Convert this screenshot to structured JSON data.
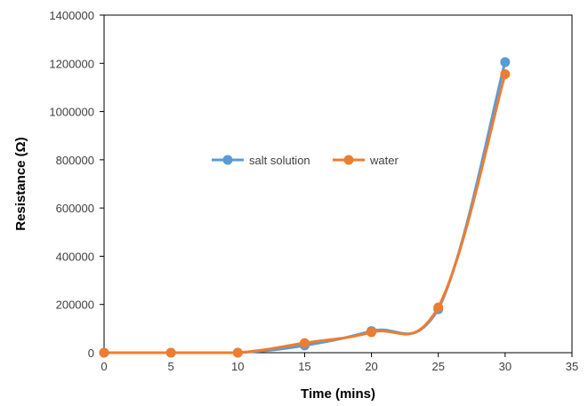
{
  "chart_data": {
    "type": "line",
    "title": "",
    "xlabel": "Time (mins)",
    "ylabel": "Resistance (Ω)",
    "xlim": [
      0,
      35
    ],
    "ylim": [
      0,
      1400000
    ],
    "xticks": [
      0,
      5,
      10,
      15,
      20,
      25,
      30,
      35
    ],
    "yticks": [
      0,
      200000,
      400000,
      600000,
      800000,
      1000000,
      1200000,
      1400000
    ],
    "xtick_labels": [
      "0",
      "5",
      "10",
      "15",
      "20",
      "25",
      "30",
      "35"
    ],
    "ytick_labels": [
      "0",
      "200000",
      "400000",
      "600000",
      "800000",
      "1000000",
      "1200000",
      "1400000"
    ],
    "grid": false,
    "legend": "center-left, inside plot",
    "x": [
      0,
      5,
      10,
      15,
      20,
      25,
      30
    ],
    "series": [
      {
        "name": "salt solution",
        "color": "#5B9BD5",
        "values": [
          0,
          0,
          0,
          30000,
          90000,
          180000,
          1205000
        ]
      },
      {
        "name": "water",
        "color": "#ED7D31",
        "values": [
          0,
          0,
          0,
          40000,
          85000,
          188000,
          1155000
        ]
      }
    ]
  }
}
